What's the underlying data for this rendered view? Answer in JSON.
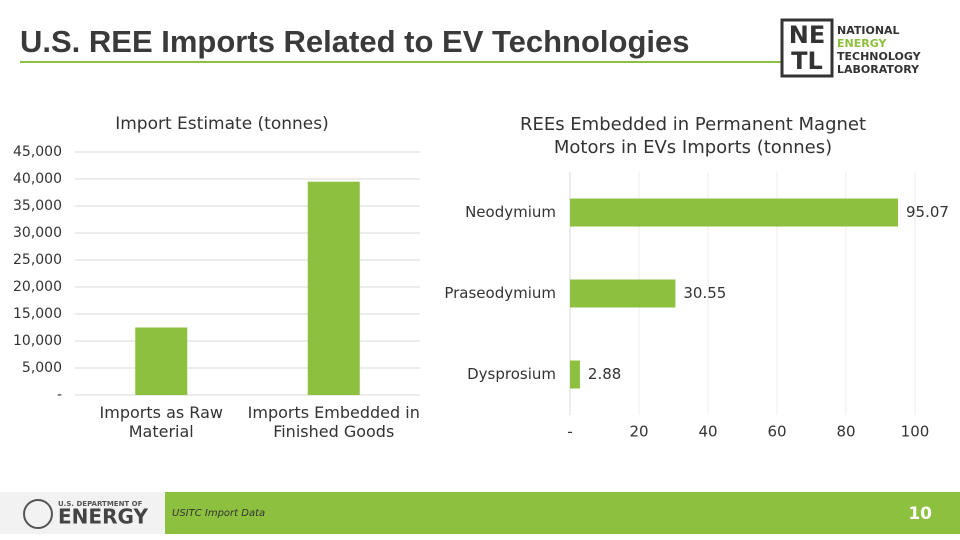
{
  "header": {
    "title": "U.S. REE Imports Related to EV Technologies"
  },
  "logo": {
    "mark": [
      "NE",
      "TL"
    ],
    "lines": [
      "NATIONAL",
      "ENERGY",
      "TECHNOLOGY",
      "LABORATORY"
    ]
  },
  "chart_data": [
    {
      "type": "bar",
      "title": "Import Estimate (tonnes)",
      "categories": [
        "Imports as Raw Material",
        "Imports Embedded in Finished Goods"
      ],
      "values": [
        12500,
        39500
      ],
      "color": "#8dc03f",
      "ylim": [
        0,
        45000
      ],
      "yticks": [
        {
          "value": 0,
          "label": "-"
        },
        {
          "value": 5000,
          "label": "5,000"
        },
        {
          "value": 10000,
          "label": "10,000"
        },
        {
          "value": 15000,
          "label": "15,000"
        },
        {
          "value": 20000,
          "label": "20,000"
        },
        {
          "value": 25000,
          "label": "25,000"
        },
        {
          "value": 30000,
          "label": "30,000"
        },
        {
          "value": 35000,
          "label": "35,000"
        },
        {
          "value": 40000,
          "label": "40,000"
        },
        {
          "value": 45000,
          "label": "45,000"
        }
      ],
      "grid": true
    },
    {
      "type": "barh",
      "title": "REEs Embedded in Permanent Magnet Motors in EVs Imports (tonnes)",
      "categories": [
        "Neodymium",
        "Praseodymium",
        "Dysprosium"
      ],
      "values": [
        95.07,
        30.55,
        2.88
      ],
      "color": "#8dc03f",
      "xlim": [
        0,
        100
      ],
      "xticks": [
        {
          "value": 0,
          "label": "-"
        },
        20,
        40,
        60,
        80,
        100
      ],
      "grid": true
    }
  ],
  "footer": {
    "agency": [
      "U.S. DEPARTMENT OF",
      "ENERGY"
    ],
    "source": "USITC Import Data",
    "page": "10"
  }
}
